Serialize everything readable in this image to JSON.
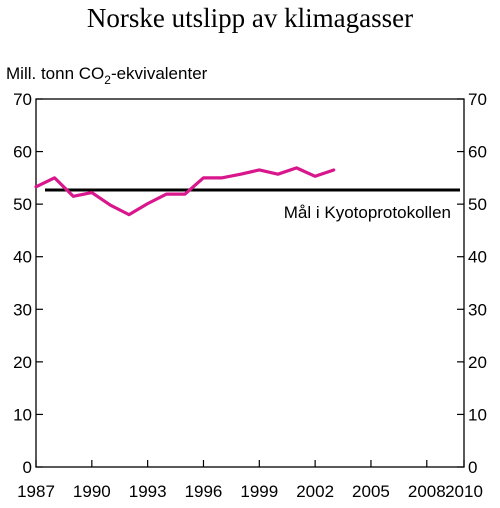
{
  "chart_data": {
    "type": "line",
    "title": "Norske utslipp av klimagasser",
    "ylabel_parts": [
      "Mill. tonn CO",
      "2",
      "-ekvivalenter"
    ],
    "xlim": [
      1987,
      2010
    ],
    "ylim": [
      0,
      70
    ],
    "x_ticks": [
      1987,
      1990,
      1993,
      1996,
      1999,
      2002,
      2005,
      2008,
      2010
    ],
    "y_ticks": [
      0,
      10,
      20,
      30,
      40,
      50,
      60,
      70
    ],
    "grid": false,
    "series": [
      {
        "color": "#d8178c",
        "x": [
          1987,
          1988,
          1989,
          1990,
          1991,
          1992,
          1993,
          1994,
          1995,
          1996,
          1997,
          1998,
          1999,
          2000,
          2001,
          2002,
          2003
        ],
        "values": [
          53.3,
          55.0,
          51.5,
          52.2,
          49.8,
          48.0,
          50.1,
          51.9,
          51.9,
          55.0,
          55.0,
          55.7,
          56.5,
          55.7,
          56.9,
          55.3,
          56.5
        ]
      }
    ],
    "reference_line": {
      "label": "Mål i Kyotoprotokollen",
      "value": 52.7,
      "x_range": [
        1987,
        2010
      ],
      "color": "#000000"
    }
  }
}
